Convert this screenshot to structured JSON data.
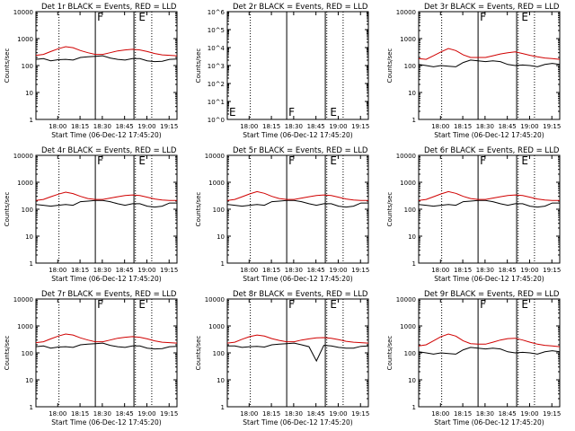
{
  "chart_data": [
    {
      "type": "line",
      "title": "Det 1r BLACK = Events, RED = LLD",
      "xlabel": "Start Time (06-Dec-12 17:45:20)",
      "ylabel": "Counts/sec",
      "xticks": [
        "18:00",
        "18:15",
        "18:30",
        "18:45",
        "19:00",
        "19:15"
      ],
      "xlim_min_since_start": [
        0,
        95
      ],
      "yscale": "log",
      "ylim": [
        1,
        10000
      ],
      "yticks": [
        "1",
        "10",
        "100",
        "1000",
        "10000"
      ],
      "flags": [
        {
          "label": "F",
          "x": 40
        },
        {
          "label": "E",
          "x": 68
        }
      ],
      "series": [
        {
          "name": "Events",
          "color": "#000000",
          "x": [
            0,
            5,
            10,
            15,
            20,
            25,
            30,
            35,
            40,
            45,
            50,
            55,
            60,
            65,
            70,
            75,
            80,
            85,
            90,
            95
          ],
          "y": [
            170,
            180,
            150,
            165,
            170,
            160,
            200,
            210,
            220,
            230,
            190,
            170,
            160,
            180,
            180,
            150,
            140,
            145,
            170,
            175
          ]
        },
        {
          "name": "LLD",
          "color": "#d00000",
          "x": [
            0,
            5,
            10,
            15,
            20,
            25,
            30,
            35,
            40,
            45,
            50,
            55,
            60,
            65,
            70,
            75,
            80,
            85,
            90,
            95
          ],
          "y": [
            240,
            260,
            330,
            420,
            500,
            460,
            360,
            300,
            260,
            260,
            300,
            350,
            380,
            400,
            380,
            330,
            280,
            250,
            240,
            230
          ]
        }
      ]
    },
    {
      "type": "line",
      "title": "Det 2r BLACK = Events, RED = LLD",
      "xlabel": "Start Time (06-Dec-12 17:45:20)",
      "ylabel": "Counts/sec",
      "xticks": [
        "18:00",
        "18:15",
        "18:30",
        "18:45",
        "19:00",
        "19:15"
      ],
      "xlim_min_since_start": [
        0,
        95
      ],
      "yscale": "log",
      "ylim": [
        1,
        1000000
      ],
      "yticks": [
        "10^0",
        "10^1",
        "10^2",
        "10^3",
        "10^4",
        "10^5",
        "10^6"
      ],
      "flags": [
        {
          "label": "F",
          "x": 40
        },
        {
          "label": "E",
          "x": 68
        }
      ],
      "series": []
    },
    {
      "type": "line",
      "title": "Det 3r BLACK = Events, RED = LLD",
      "xlabel": "Start Time (06-Dec-12 17:45:20)",
      "ylabel": "Counts/sec",
      "xticks": [
        "18:00",
        "18:15",
        "18:30",
        "18:45",
        "19:00",
        "19:15"
      ],
      "xlim_min_since_start": [
        0,
        95
      ],
      "yscale": "log",
      "ylim": [
        1,
        10000
      ],
      "yticks": [
        "1",
        "10",
        "100",
        "1000",
        "10000"
      ],
      "flags": [
        {
          "label": "F",
          "x": 40
        },
        {
          "label": "E",
          "x": 68
        }
      ],
      "series": [
        {
          "name": "Events",
          "color": "#000000",
          "x": [
            0,
            5,
            10,
            15,
            20,
            25,
            30,
            35,
            40,
            45,
            50,
            55,
            60,
            65,
            70,
            75,
            80,
            85,
            90,
            95
          ],
          "y": [
            110,
            100,
            90,
            100,
            95,
            90,
            130,
            160,
            150,
            140,
            150,
            140,
            110,
            100,
            105,
            100,
            90,
            110,
            120,
            110
          ]
        },
        {
          "name": "LLD",
          "color": "#d00000",
          "x": [
            0,
            5,
            10,
            15,
            20,
            25,
            30,
            35,
            40,
            45,
            50,
            55,
            60,
            65,
            70,
            75,
            80,
            85,
            90,
            95
          ],
          "y": [
            180,
            170,
            230,
            320,
            430,
            360,
            250,
            200,
            200,
            200,
            230,
            270,
            300,
            320,
            280,
            240,
            210,
            190,
            180,
            170
          ]
        }
      ]
    },
    {
      "type": "line",
      "title": "Det 4r BLACK = Events, RED = LLD",
      "xlabel": "Start Time (06-Dec-12 17:45:20)",
      "ylabel": "Counts/sec",
      "xticks": [
        "18:00",
        "18:15",
        "18:30",
        "18:45",
        "19:00",
        "19:15"
      ],
      "xlim_min_since_start": [
        0,
        95
      ],
      "yscale": "log",
      "ylim": [
        1,
        10000
      ],
      "yticks": [
        "1",
        "10",
        "100",
        "1000",
        "10000"
      ],
      "flags": [
        {
          "label": "F",
          "x": 40
        },
        {
          "label": "E",
          "x": 68
        }
      ],
      "series": [
        {
          "name": "Events",
          "color": "#000000",
          "x": [
            0,
            5,
            10,
            15,
            20,
            25,
            30,
            35,
            40,
            45,
            50,
            55,
            60,
            65,
            70,
            75,
            80,
            85,
            90,
            95
          ],
          "y": [
            150,
            140,
            130,
            140,
            150,
            140,
            190,
            200,
            210,
            210,
            190,
            160,
            140,
            160,
            160,
            130,
            120,
            130,
            170,
            170
          ]
        },
        {
          "name": "LLD",
          "color": "#d00000",
          "x": [
            0,
            5,
            10,
            15,
            20,
            25,
            30,
            35,
            40,
            45,
            50,
            55,
            60,
            65,
            70,
            75,
            80,
            85,
            90,
            95
          ],
          "y": [
            210,
            230,
            290,
            360,
            430,
            380,
            300,
            250,
            230,
            230,
            260,
            290,
            320,
            340,
            320,
            280,
            240,
            220,
            210,
            210
          ]
        }
      ]
    },
    {
      "type": "line",
      "title": "Det 5r BLACK = Events, RED = LLD",
      "xlabel": "Start Time (06-Dec-12 17:45:20)",
      "ylabel": "Counts/sec",
      "xticks": [
        "18:00",
        "18:15",
        "18:30",
        "18:45",
        "19:00",
        "19:15"
      ],
      "xlim_min_since_start": [
        0,
        95
      ],
      "yscale": "log",
      "ylim": [
        1,
        10000
      ],
      "yticks": [
        "1",
        "10",
        "100",
        "1000",
        "10000"
      ],
      "flags": [
        {
          "label": "F",
          "x": 40
        },
        {
          "label": "E",
          "x": 68
        }
      ],
      "series": [
        {
          "name": "Events",
          "color": "#000000",
          "x": [
            0,
            5,
            10,
            15,
            20,
            25,
            30,
            35,
            40,
            45,
            50,
            55,
            60,
            65,
            70,
            75,
            80,
            85,
            90,
            95
          ],
          "y": [
            150,
            140,
            130,
            140,
            150,
            140,
            190,
            200,
            210,
            210,
            190,
            160,
            140,
            160,
            160,
            130,
            120,
            130,
            170,
            170
          ]
        },
        {
          "name": "LLD",
          "color": "#d00000",
          "x": [
            0,
            5,
            10,
            15,
            20,
            25,
            30,
            35,
            40,
            45,
            50,
            55,
            60,
            65,
            70,
            75,
            80,
            85,
            90,
            95
          ],
          "y": [
            210,
            230,
            290,
            370,
            450,
            390,
            300,
            250,
            230,
            230,
            260,
            290,
            320,
            340,
            320,
            280,
            240,
            220,
            210,
            210
          ]
        }
      ]
    },
    {
      "type": "line",
      "title": "Det 6r BLACK = Events, RED = LLD",
      "xlabel": "Start Time (06-Dec-12 17:45:20)",
      "ylabel": "Counts/sec",
      "xticks": [
        "18:00",
        "18:15",
        "18:30",
        "18:45",
        "19:00",
        "19:15"
      ],
      "xlim_min_since_start": [
        0,
        95
      ],
      "yscale": "log",
      "ylim": [
        1,
        10000
      ],
      "yticks": [
        "1",
        "10",
        "100",
        "1000",
        "10000"
      ],
      "flags": [
        {
          "label": "F",
          "x": 40
        },
        {
          "label": "E",
          "x": 68
        }
      ],
      "series": [
        {
          "name": "Events",
          "color": "#000000",
          "x": [
            0,
            5,
            10,
            15,
            20,
            25,
            30,
            35,
            40,
            45,
            50,
            55,
            60,
            65,
            70,
            75,
            80,
            85,
            90,
            95
          ],
          "y": [
            150,
            140,
            130,
            140,
            150,
            140,
            190,
            200,
            210,
            210,
            190,
            160,
            140,
            160,
            160,
            130,
            120,
            130,
            170,
            170
          ]
        },
        {
          "name": "LLD",
          "color": "#d00000",
          "x": [
            0,
            5,
            10,
            15,
            20,
            25,
            30,
            35,
            40,
            45,
            50,
            55,
            60,
            65,
            70,
            75,
            80,
            85,
            90,
            95
          ],
          "y": [
            210,
            230,
            290,
            370,
            450,
            390,
            300,
            250,
            230,
            230,
            260,
            290,
            320,
            340,
            320,
            280,
            240,
            220,
            210,
            210
          ]
        }
      ]
    },
    {
      "type": "line",
      "title": "Det 7r BLACK = Events, RED = LLD",
      "xlabel": "Start Time (06-Dec-12 17:45:20)",
      "ylabel": "Counts/sec",
      "xticks": [
        "18:00",
        "18:15",
        "18:30",
        "18:45",
        "19:00",
        "19:15"
      ],
      "xlim_min_since_start": [
        0,
        95
      ],
      "yscale": "log",
      "ylim": [
        1,
        10000
      ],
      "yticks": [
        "1",
        "10",
        "100",
        "1000",
        "10000"
      ],
      "flags": [
        {
          "label": "F",
          "x": 40
        },
        {
          "label": "E",
          "x": 68
        }
      ],
      "series": [
        {
          "name": "Events",
          "color": "#000000",
          "x": [
            0,
            5,
            10,
            15,
            20,
            25,
            30,
            35,
            40,
            45,
            50,
            55,
            60,
            65,
            70,
            75,
            80,
            85,
            90,
            95
          ],
          "y": [
            170,
            180,
            150,
            165,
            170,
            160,
            200,
            210,
            220,
            230,
            190,
            170,
            160,
            180,
            180,
            150,
            140,
            145,
            170,
            175
          ]
        },
        {
          "name": "LLD",
          "color": "#d00000",
          "x": [
            0,
            5,
            10,
            15,
            20,
            25,
            30,
            35,
            40,
            45,
            50,
            55,
            60,
            65,
            70,
            75,
            80,
            85,
            90,
            95
          ],
          "y": [
            240,
            260,
            330,
            420,
            500,
            460,
            360,
            300,
            260,
            260,
            300,
            350,
            380,
            400,
            380,
            330,
            280,
            250,
            240,
            230
          ]
        }
      ]
    },
    {
      "type": "line",
      "title": "Det 8r BLACK = Events, RED = LLD",
      "xlabel": "Start Time (06-Dec-12 17:45:20)",
      "ylabel": "Counts/sec",
      "xticks": [
        "18:00",
        "18:15",
        "18:30",
        "18:45",
        "19:00",
        "19:15"
      ],
      "xlim_min_since_start": [
        0,
        95
      ],
      "yscale": "log",
      "ylim": [
        1,
        10000
      ],
      "yticks": [
        "1",
        "10",
        "100",
        "1000",
        "10000"
      ],
      "flags": [
        {
          "label": "F",
          "x": 40
        },
        {
          "label": "E",
          "x": 68
        }
      ],
      "series": [
        {
          "name": "Events",
          "color": "#000000",
          "x": [
            0,
            5,
            10,
            15,
            20,
            25,
            30,
            35,
            40,
            45,
            50,
            55,
            60,
            65,
            70,
            75,
            80,
            85,
            90,
            95
          ],
          "y": [
            180,
            180,
            160,
            170,
            175,
            165,
            200,
            210,
            220,
            230,
            200,
            170,
            50,
            190,
            180,
            160,
            150,
            150,
            175,
            180
          ]
        },
        {
          "name": "LLD",
          "color": "#d00000",
          "x": [
            0,
            5,
            10,
            15,
            20,
            25,
            30,
            35,
            40,
            45,
            50,
            55,
            60,
            65,
            70,
            75,
            80,
            85,
            90,
            95
          ],
          "y": [
            230,
            250,
            320,
            400,
            460,
            420,
            340,
            290,
            260,
            260,
            300,
            330,
            360,
            370,
            350,
            310,
            270,
            250,
            240,
            230
          ]
        }
      ]
    },
    {
      "type": "line",
      "title": "Det 9r BLACK = Events, RED = LLD",
      "xlabel": "Start Time (06-Dec-12 17:45:20)",
      "ylabel": "Counts/sec",
      "xticks": [
        "18:00",
        "18:15",
        "18:30",
        "18:45",
        "19:00",
        "19:15"
      ],
      "xlim_min_since_start": [
        0,
        95
      ],
      "yscale": "log",
      "ylim": [
        1,
        10000
      ],
      "yticks": [
        "1",
        "10",
        "100",
        "1000",
        "10000"
      ],
      "flags": [
        {
          "label": "F",
          "x": 40
        },
        {
          "label": "E",
          "x": 68
        }
      ],
      "series": [
        {
          "name": "Events",
          "color": "#000000",
          "x": [
            0,
            5,
            10,
            15,
            20,
            25,
            30,
            35,
            40,
            45,
            50,
            55,
            60,
            65,
            70,
            75,
            80,
            85,
            90,
            95
          ],
          "y": [
            110,
            100,
            90,
            100,
            95,
            90,
            130,
            160,
            150,
            140,
            150,
            140,
            110,
            100,
            105,
            100,
            90,
            110,
            120,
            110
          ]
        },
        {
          "name": "LLD",
          "color": "#d00000",
          "x": [
            0,
            5,
            10,
            15,
            20,
            25,
            30,
            35,
            40,
            45,
            50,
            55,
            60,
            65,
            70,
            75,
            80,
            85,
            90,
            95
          ],
          "y": [
            180,
            200,
            280,
            400,
            500,
            420,
            280,
            220,
            210,
            210,
            250,
            300,
            340,
            350,
            300,
            250,
            210,
            190,
            180,
            170
          ]
        }
      ]
    }
  ]
}
